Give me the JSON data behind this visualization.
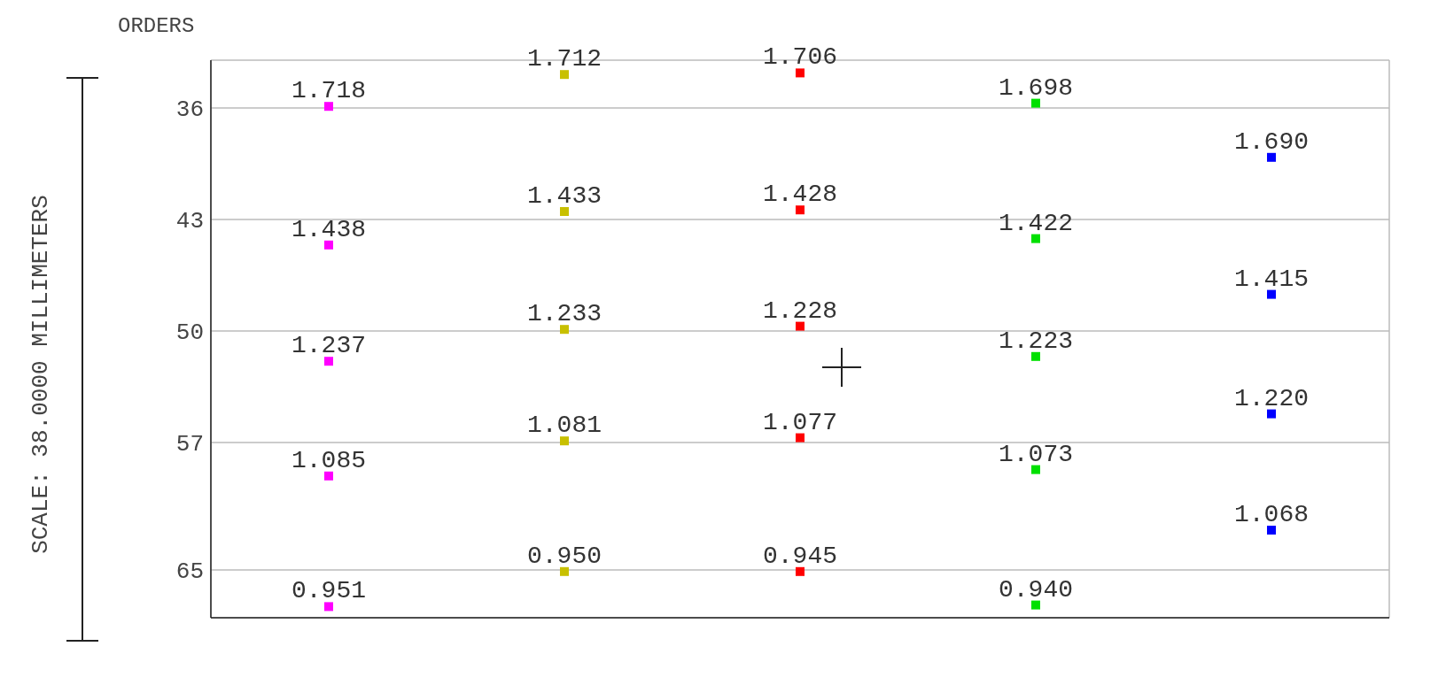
{
  "chart_data": {
    "type": "scatter",
    "ylabel": "ORDERS",
    "annotations": [
      "SCALE: 38.0000 MILLIMETERS",
      {
        "text": "1.718",
        "y": 35.9
      },
      {
        "text": "1.712",
        "y": 33.9
      },
      {
        "text": "1.706",
        "y": 33.8
      },
      {
        "text": "1.698",
        "y": 35.7
      },
      {
        "text": "1.690",
        "y": 39.1
      },
      {
        "text": "1.438",
        "y": 44.6
      },
      {
        "text": "1.433",
        "y": 42.5
      },
      {
        "text": "1.428",
        "y": 42.4
      },
      {
        "text": "1.422",
        "y": 44.2
      },
      {
        "text": "1.415",
        "y": 47.7
      },
      {
        "text": "1.237",
        "y": 51.9
      },
      {
        "text": "1.233",
        "y": 49.9
      },
      {
        "text": "1.228",
        "y": 49.7
      },
      {
        "text": "1.223",
        "y": 51.6
      },
      {
        "text": "1.220",
        "y": 55.2
      },
      {
        "text": "1.085",
        "y": 59.1
      },
      {
        "text": "1.081",
        "y": 56.9
      },
      {
        "text": "1.077",
        "y": 56.7
      },
      {
        "text": "1.073",
        "y": 58.7
      },
      {
        "text": "1.068",
        "y": 62.5
      },
      {
        "text": "0.951",
        "y": 67.3
      },
      {
        "text": "0.950",
        "y": 65.1
      },
      {
        "text": "0.945",
        "y": 65.1
      },
      {
        "text": "0.940",
        "y": 67.2
      }
    ],
    "categories": [
      null,
      null,
      null,
      null,
      null
    ],
    "series": [
      {
        "colors": [
          "#ff00ff",
          "#c8c000",
          "#ff0000",
          "#00e000",
          "#0000ff"
        ],
        "values": [
          35.9,
          33.9,
          33.8,
          35.7,
          39.1
        ]
      },
      {
        "colors": [
          "#ff00ff",
          "#c8c000",
          "#ff0000",
          "#00e000",
          "#0000ff"
        ],
        "values": [
          44.6,
          42.5,
          42.4,
          44.2,
          47.7
        ]
      },
      {
        "colors": [
          "#ff00ff",
          "#c8c000",
          "#ff0000",
          "#00e000",
          "#0000ff"
        ],
        "values": [
          51.9,
          49.9,
          49.7,
          51.6,
          55.2
        ]
      },
      {
        "colors": [
          "#ff00ff",
          "#c8c000",
          "#ff0000",
          "#00e000",
          "#0000ff"
        ],
        "values": [
          59.1,
          56.9,
          56.7,
          58.7,
          62.5
        ]
      },
      {
        "colors": [
          "#ff00ff",
          "#c8c000",
          "#ff0000",
          "#00e000",
          "#0000ff"
        ],
        "values": [
          67.3,
          65.1,
          65.1,
          67.2,
          null
        ]
      }
    ],
    "ylim": [
      68,
      33
    ],
    "yticks": [
      36,
      43,
      50,
      57,
      65
    ],
    "grid": true,
    "marker": "square",
    "tick_labels": "y"
  }
}
